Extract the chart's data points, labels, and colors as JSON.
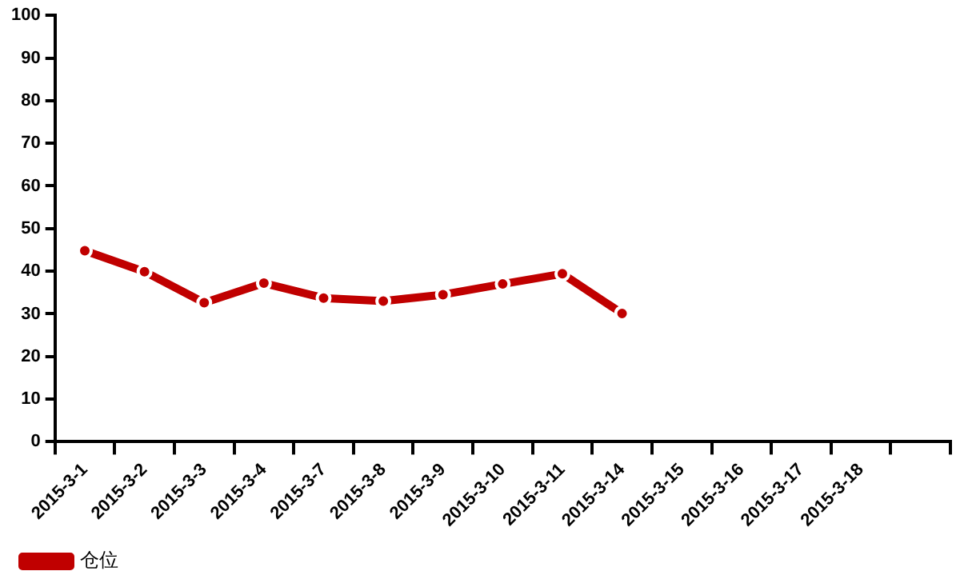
{
  "chart_data": {
    "type": "line",
    "categories": [
      "2015-3-1",
      "2015-3-2",
      "2015-3-3",
      "2015-3-4",
      "2015-3-7",
      "2015-3-8",
      "2015-3-9",
      "2015-3-10",
      "2015-3-11",
      "2015-3-14",
      "2015-3-15",
      "2015-3-16",
      "2015-3-17",
      "2015-3-18",
      null
    ],
    "series": [
      {
        "name": "仓位",
        "color": "#c00000",
        "values": [
          44.8,
          39.9,
          32.6,
          37.2,
          33.7,
          33.0,
          34.5,
          37.0,
          39.4,
          30.1,
          null,
          null,
          null,
          null,
          null
        ]
      }
    ],
    "ylim": [
      0,
      100
    ],
    "yticks": [
      0,
      10,
      20,
      30,
      40,
      50,
      60,
      70,
      80,
      90,
      100
    ],
    "grid": false,
    "legend": "bottom left",
    "marker": "circle",
    "line_style": "solid"
  }
}
